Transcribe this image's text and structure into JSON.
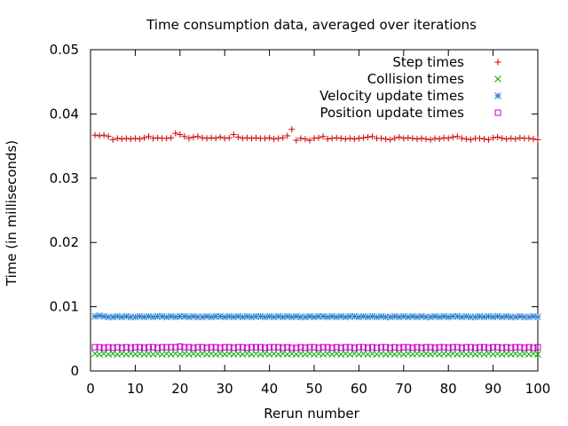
{
  "chart_data": {
    "type": "scatter",
    "title": "Time consumption data, averaged over iterations",
    "xlabel": "Rerun number",
    "ylabel": "Time (in milliseconds)",
    "xlim": [
      0,
      100
    ],
    "ylim": [
      0,
      0.05
    ],
    "x_ticks": [
      "0",
      "10",
      "20",
      "30",
      "40",
      "50",
      "60",
      "70",
      "80",
      "90",
      "100"
    ],
    "y_ticks": [
      "0",
      "0.01",
      "0.02",
      "0.03",
      "0.04",
      "0.05"
    ],
    "grid": false,
    "legend_position": "top-right",
    "x": [
      1,
      2,
      3,
      4,
      5,
      6,
      7,
      8,
      9,
      10,
      11,
      12,
      13,
      14,
      15,
      16,
      17,
      18,
      19,
      20,
      21,
      22,
      23,
      24,
      25,
      26,
      27,
      28,
      29,
      30,
      31,
      32,
      33,
      34,
      35,
      36,
      37,
      38,
      39,
      40,
      41,
      42,
      43,
      44,
      45,
      46,
      47,
      48,
      49,
      50,
      51,
      52,
      53,
      54,
      55,
      56,
      57,
      58,
      59,
      60,
      61,
      62,
      63,
      64,
      65,
      66,
      67,
      68,
      69,
      70,
      71,
      72,
      73,
      74,
      75,
      76,
      77,
      78,
      79,
      80,
      81,
      82,
      83,
      84,
      85,
      86,
      87,
      88,
      89,
      90,
      91,
      92,
      93,
      94,
      95,
      96,
      97,
      98,
      99,
      100
    ],
    "series": [
      {
        "name": "Step times",
        "color": "#cc0000",
        "marker": "plus",
        "values": [
          0.0367,
          0.0366,
          0.0367,
          0.0365,
          0.036,
          0.0362,
          0.0361,
          0.0362,
          0.0361,
          0.0362,
          0.0361,
          0.0363,
          0.0365,
          0.0362,
          0.0363,
          0.0362,
          0.0362,
          0.0363,
          0.037,
          0.0368,
          0.0365,
          0.0362,
          0.0364,
          0.0365,
          0.0363,
          0.0362,
          0.0363,
          0.0362,
          0.0364,
          0.0362,
          0.0363,
          0.0368,
          0.0364,
          0.0362,
          0.0363,
          0.0362,
          0.0363,
          0.0362,
          0.0362,
          0.0363,
          0.0361,
          0.0362,
          0.0363,
          0.0366,
          0.0376,
          0.0359,
          0.0362,
          0.0361,
          0.0359,
          0.0362,
          0.0363,
          0.0365,
          0.0361,
          0.0362,
          0.0363,
          0.0362,
          0.0361,
          0.0362,
          0.0361,
          0.0362,
          0.0363,
          0.0364,
          0.0365,
          0.0362,
          0.0362,
          0.0361,
          0.036,
          0.0362,
          0.0364,
          0.0362,
          0.0363,
          0.0362,
          0.0361,
          0.0362,
          0.0361,
          0.036,
          0.0362,
          0.0361,
          0.0363,
          0.0362,
          0.0364,
          0.0365,
          0.0362,
          0.0361,
          0.036,
          0.0362,
          0.0362,
          0.0361,
          0.036,
          0.0363,
          0.0364,
          0.0362,
          0.0361,
          0.0362,
          0.0361,
          0.0363,
          0.0362,
          0.0362,
          0.0361,
          0.036
        ]
      },
      {
        "name": "Collision times",
        "color": "#00aa00",
        "marker": "cross",
        "values": [
          0.0027,
          0.0026,
          0.0027,
          0.0026,
          0.0027,
          0.0026,
          0.0027,
          0.0026,
          0.0027,
          0.0026,
          0.0027,
          0.0026,
          0.0027,
          0.0026,
          0.0027,
          0.0026,
          0.0027,
          0.0026,
          0.0027,
          0.0026,
          0.0027,
          0.0026,
          0.0027,
          0.0026,
          0.0027,
          0.0026,
          0.0027,
          0.0026,
          0.0027,
          0.0026,
          0.0027,
          0.0026,
          0.0027,
          0.0026,
          0.0027,
          0.0026,
          0.0027,
          0.0026,
          0.0027,
          0.0026,
          0.0027,
          0.0026,
          0.0027,
          0.0026,
          0.0027,
          0.0026,
          0.0027,
          0.0026,
          0.0027,
          0.0026,
          0.0027,
          0.0026,
          0.0027,
          0.0026,
          0.0027,
          0.0026,
          0.0027,
          0.0026,
          0.0027,
          0.0026,
          0.0027,
          0.0026,
          0.0027,
          0.0026,
          0.0027,
          0.0026,
          0.0027,
          0.0026,
          0.0027,
          0.0026,
          0.0027,
          0.0026,
          0.0027,
          0.0026,
          0.0027,
          0.0026,
          0.0027,
          0.0026,
          0.0027,
          0.0026,
          0.0027,
          0.0026,
          0.0027,
          0.0026,
          0.0027,
          0.0026,
          0.0027,
          0.0026,
          0.0027,
          0.0026,
          0.0027,
          0.0026,
          0.0027,
          0.0026,
          0.0027,
          0.0026,
          0.0027,
          0.0026,
          0.0027,
          0.0026
        ]
      },
      {
        "name": "Velocity update times",
        "color": "#2a7fd4",
        "marker": "star",
        "values": [
          0.0085,
          0.0086,
          0.0085,
          0.0084,
          0.0084,
          0.0085,
          0.0084,
          0.0085,
          0.0084,
          0.0084,
          0.0085,
          0.0084,
          0.0085,
          0.0084,
          0.0085,
          0.0085,
          0.0084,
          0.0085,
          0.0084,
          0.0085,
          0.0085,
          0.0084,
          0.0085,
          0.0084,
          0.0084,
          0.0085,
          0.0084,
          0.0085,
          0.0085,
          0.0084,
          0.0085,
          0.0084,
          0.0085,
          0.0084,
          0.0085,
          0.0084,
          0.0085,
          0.0085,
          0.0084,
          0.0085,
          0.0084,
          0.0085,
          0.0084,
          0.0085,
          0.0084,
          0.0085,
          0.0084,
          0.0084,
          0.0085,
          0.0084,
          0.0085,
          0.0085,
          0.0084,
          0.0085,
          0.0084,
          0.0085,
          0.0084,
          0.0085,
          0.0085,
          0.0084,
          0.0085,
          0.0084,
          0.0085,
          0.0084,
          0.0085,
          0.0084,
          0.0084,
          0.0085,
          0.0084,
          0.0085,
          0.0084,
          0.0085,
          0.0084,
          0.0085,
          0.0084,
          0.0084,
          0.0085,
          0.0084,
          0.0085,
          0.0084,
          0.0085,
          0.0085,
          0.0084,
          0.0085,
          0.0084,
          0.0084,
          0.0085,
          0.0084,
          0.0085,
          0.0084,
          0.0085,
          0.0084,
          0.0085,
          0.0084,
          0.0084,
          0.0085,
          0.0084,
          0.0084,
          0.0085,
          0.0084
        ]
      },
      {
        "name": "Position update times",
        "color": "#cc00cc",
        "marker": "square",
        "values": [
          0.0037,
          0.0037,
          0.0036,
          0.0037,
          0.0036,
          0.0037,
          0.0036,
          0.0037,
          0.0036,
          0.0037,
          0.0037,
          0.0036,
          0.0037,
          0.0037,
          0.0036,
          0.0037,
          0.0037,
          0.0037,
          0.0037,
          0.0038,
          0.0037,
          0.0037,
          0.0036,
          0.0037,
          0.0037,
          0.0036,
          0.0037,
          0.0037,
          0.0036,
          0.0037,
          0.0037,
          0.0036,
          0.0037,
          0.0037,
          0.0036,
          0.0037,
          0.0037,
          0.0037,
          0.0036,
          0.0037,
          0.0037,
          0.0037,
          0.0036,
          0.0037,
          0.0036,
          0.0036,
          0.0037,
          0.0036,
          0.0037,
          0.0037,
          0.0036,
          0.0037,
          0.0037,
          0.0036,
          0.0037,
          0.0036,
          0.0037,
          0.0037,
          0.0036,
          0.0037,
          0.0037,
          0.0036,
          0.0037,
          0.0036,
          0.0037,
          0.0037,
          0.0036,
          0.0037,
          0.0036,
          0.0037,
          0.0037,
          0.0036,
          0.0037,
          0.0036,
          0.0037,
          0.0037,
          0.0036,
          0.0037,
          0.0037,
          0.0036,
          0.0037,
          0.0037,
          0.0036,
          0.0037,
          0.0037,
          0.0036,
          0.0037,
          0.0037,
          0.0036,
          0.0037,
          0.0037,
          0.0036,
          0.0037,
          0.0036,
          0.0037,
          0.0037,
          0.0036,
          0.0037,
          0.0036,
          0.0037
        ]
      }
    ]
  }
}
